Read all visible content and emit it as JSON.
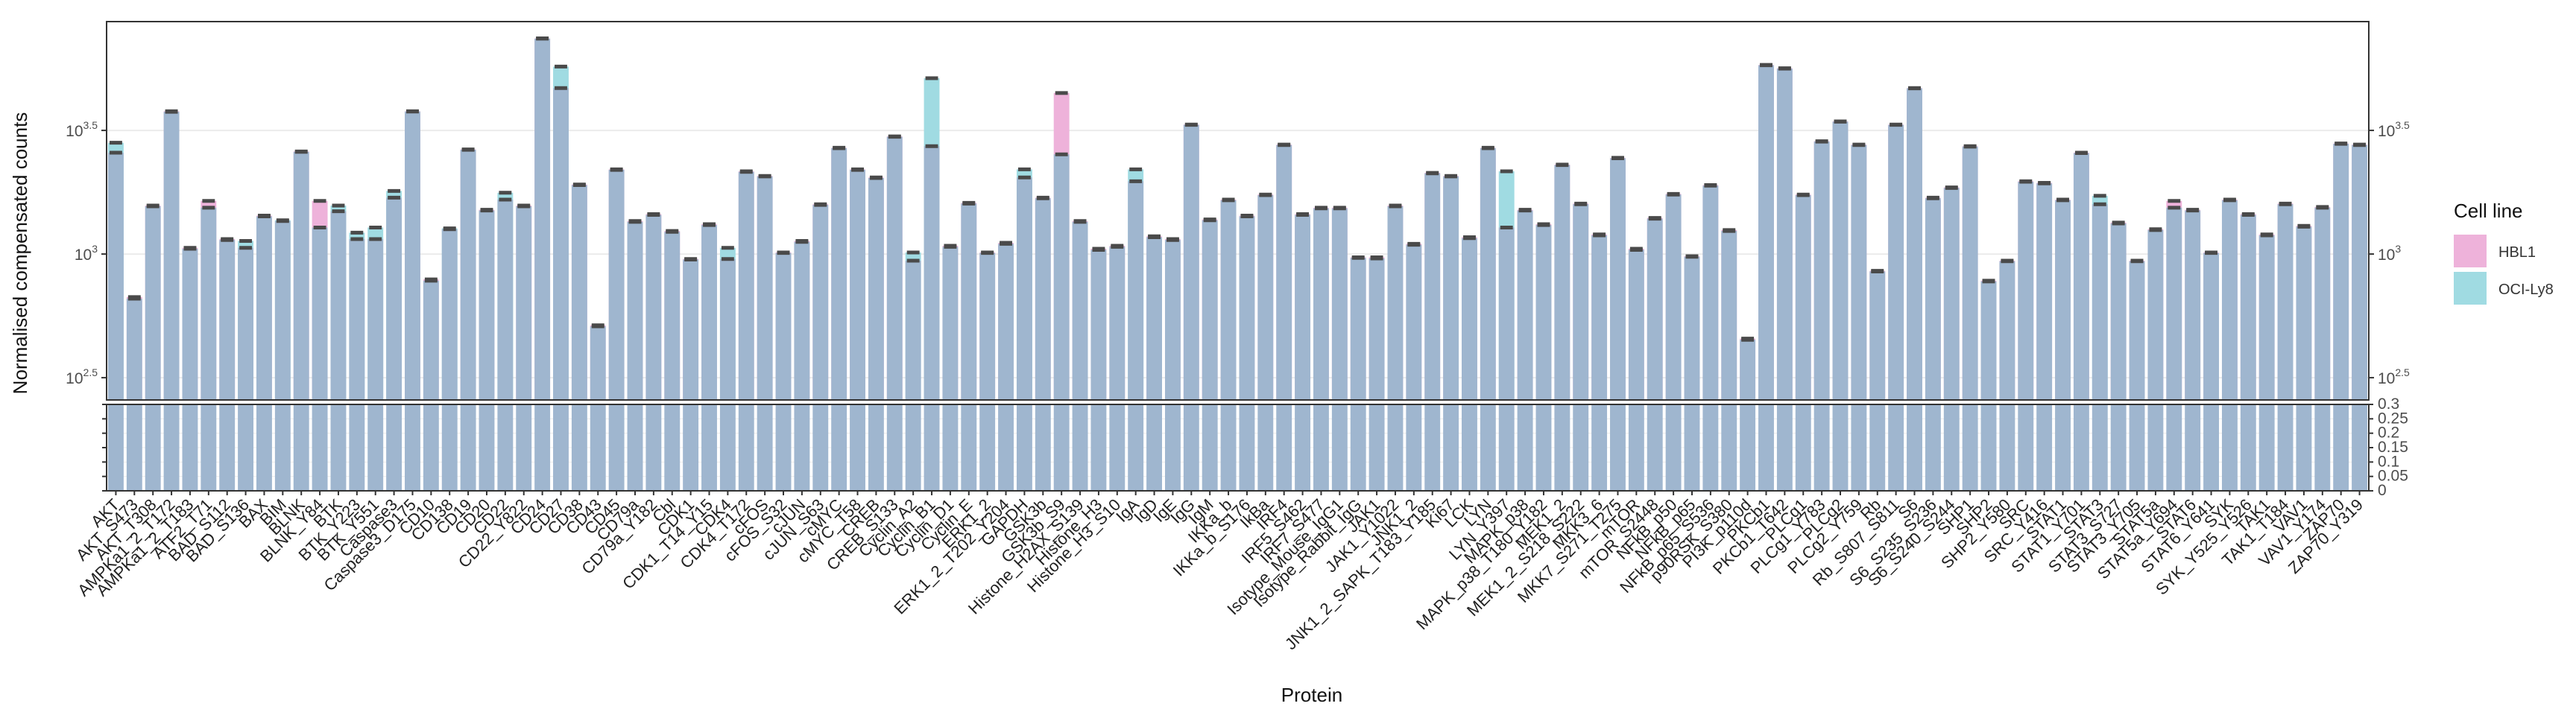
{
  "chart_data": {
    "type": "bar",
    "stacking": "overlap",
    "x_label": "Protein",
    "y_label": "Normalised compensated counts",
    "legend_title": "Cell line",
    "log_y": true,
    "grid": true,
    "legend_position": "right",
    "overlap_color": "#9fb6cf",
    "error_color": "#4a4a4a",
    "categories": [
      "AKT",
      "AKT_S473",
      "AKT_T308",
      "AMPKa1_2_T172",
      "AMPKa1_2_T183",
      "ATF2_T71",
      "BAD_S112",
      "BAD_S136",
      "BAX",
      "BIM",
      "BLNK",
      "BLNK_Y84",
      "BTK",
      "BTK_Y223",
      "BTK_Y551",
      "Caspase3",
      "Caspase3_D175",
      "CD10",
      "CD138",
      "CD19",
      "CD20",
      "CD22",
      "CD22_Y822",
      "CD24",
      "CD27",
      "CD38",
      "CD43",
      "CD45",
      "CD79a",
      "CD79a_Y182",
      "Cbl",
      "CDK1",
      "CDK1_T14_Y15",
      "CDK4",
      "CDK4_T172",
      "cFOS",
      "cFOS_S32",
      "cJUN",
      "cJUN_S63",
      "cMYC",
      "cMYC_T58",
      "CREB",
      "CREB_S133",
      "Cyclin_A2",
      "Cyclin_B1",
      "Cyclin_D1",
      "Cyclin_E",
      "ERK1_2",
      "ERK1_2_T202_Y204",
      "GAPDH",
      "GSK3b",
      "GSK3b_S9",
      "Histone_H2AX_S139",
      "Histone_H3",
      "Histone_H3_S10",
      "IgA",
      "IgD",
      "IgE",
      "IgG",
      "IgM",
      "IKKa_b",
      "IKKa_b_S176",
      "IkBa",
      "IRF4",
      "IRF5_S462",
      "IRF7_S477",
      "Isotype_Mouse_IgG1",
      "Isotype_Rabbit_IgG",
      "JAK1",
      "JAK1_Y1022",
      "JNK1_2",
      "JNK1_2_SAPK_T183_Y185",
      "Ki67",
      "LCK",
      "LYN",
      "LYN_Y397",
      "MAPK_p38",
      "MAPK_p38_T180_Y182",
      "MEK1_2",
      "MEK1_2_S218_S222",
      "MKK3_6",
      "MKK7_S271_T275",
      "mTOR",
      "mTOR_S2448",
      "NFkB_p50",
      "NFkB_p65",
      "NFkB_p65_S536",
      "p90RSK_S380",
      "PI3K_p110d",
      "PKCb1",
      "PKCb1_T642",
      "PLCg1",
      "PLCg1_Y783",
      "PLCg2",
      "PLCg2_Y759",
      "Rb",
      "Rb_S807_S811",
      "S6",
      "S6_S235_S236",
      "S6_S240_S244",
      "SHP1",
      "SHP2",
      "SHP2_Y580",
      "SRC",
      "SRC_Y416",
      "STAT1",
      "STAT1_Y701",
      "STAT3",
      "STAT3_S727",
      "STAT3_Y705",
      "STAT5a",
      "STAT5a_Y694",
      "STAT6",
      "STAT6_Y641",
      "SYK",
      "SYK_Y525_Y526",
      "TAK1",
      "TAK1_T184",
      "VAV1",
      "VAV1_Y174",
      "ZAP70",
      "ZAP70_Y319"
    ],
    "series": [
      {
        "name": "HBL1",
        "color": "#eeb2da",
        "values": [
          2570,
          670,
          1570,
          3780,
          1060,
          1640,
          1150,
          1060,
          1430,
          1360,
          2600,
          1640,
          1490,
          1150,
          1150,
          1690,
          3780,
          790,
          1260,
          2650,
          1510,
          1660,
          1570,
          7450,
          4690,
          1910,
          515,
          2200,
          1360,
          1450,
          1240,
          955,
          1320,
          955,
          2160,
          2070,
          1015,
          1130,
          1590,
          2690,
          2200,
          2040,
          2990,
          940,
          2730,
          1080,
          1610,
          1015,
          1110,
          2040,
          1690,
          4480,
          1360,
          1050,
          1080,
          1970,
          1180,
          1150,
          3340,
          1380,
          1660,
          1430,
          1740,
          2770,
          1450,
          1540,
          1540,
          970,
          970,
          1570,
          1100,
          2130,
          2070,
          1170,
          2690,
          1280,
          1510,
          1320,
          2300,
          1600,
          1200,
          2450,
          1050,
          1400,
          1750,
          980,
          1900,
          1250,
          455,
          5820,
          5640,
          1740,
          2860,
          3440,
          2770,
          855,
          3340,
          4690,
          1690,
          1860,
          2730,
          780,
          940,
          1970,
          1940,
          1660,
          2570,
          1590,
          1340,
          940,
          1260,
          1640,
          1510,
          1015,
          1660,
          1450,
          1200,
          1600,
          1300,
          1550,
          2800,
          2770
        ]
      },
      {
        "name": "OCI-Ly8",
        "color": "#a0dbe2",
        "values": [
          2820,
          660,
          1560,
          3760,
          1050,
          1540,
          1140,
          1130,
          1420,
          1370,
          2590,
          1280,
          1570,
          1220,
          1280,
          1800,
          3770,
          780,
          1270,
          2640,
          1500,
          1770,
          1560,
          7430,
          5730,
          1900,
          510,
          2190,
          1350,
          1440,
          1230,
          950,
          1310,
          1060,
          2150,
          2060,
          1010,
          1120,
          1580,
          2680,
          2190,
          2030,
          2980,
          1015,
          5140,
          1070,
          1600,
          1010,
          1100,
          2200,
          1680,
          2530,
          1350,
          1040,
          1070,
          2200,
          1170,
          1140,
          3330,
          1370,
          1650,
          1420,
          1730,
          2760,
          1440,
          1530,
          1530,
          965,
          960,
          1560,
          1090,
          2120,
          2060,
          1160,
          2680,
          2160,
          1500,
          1310,
          2290,
          1590,
          1190,
          2440,
          1040,
          1390,
          1740,
          975,
          1890,
          1240,
          450,
          5800,
          5620,
          1730,
          2850,
          3430,
          2760,
          850,
          3330,
          4680,
          1680,
          1850,
          2720,
          775,
          935,
          1960,
          1930,
          1650,
          2560,
          1720,
          1330,
          935,
          1250,
          1540,
          1500,
          1010,
          1650,
          1440,
          1190,
          1590,
          1290,
          1540,
          2790,
          2760
        ]
      }
    ],
    "ylim": [
      257,
      8710
    ],
    "yticks": [
      {
        "value": 316.2,
        "label": "10",
        "exponent": "2.5"
      },
      {
        "value": 1000,
        "label": "10",
        "exponent": "3"
      },
      {
        "value": 3162.3,
        "label": "10",
        "exponent": "3.5"
      }
    ],
    "lower_ylim": [
      0,
      0.3
    ],
    "lower_yticks": [
      0,
      0.05,
      0.1,
      0.15,
      0.2,
      0.25,
      0.3
    ]
  }
}
